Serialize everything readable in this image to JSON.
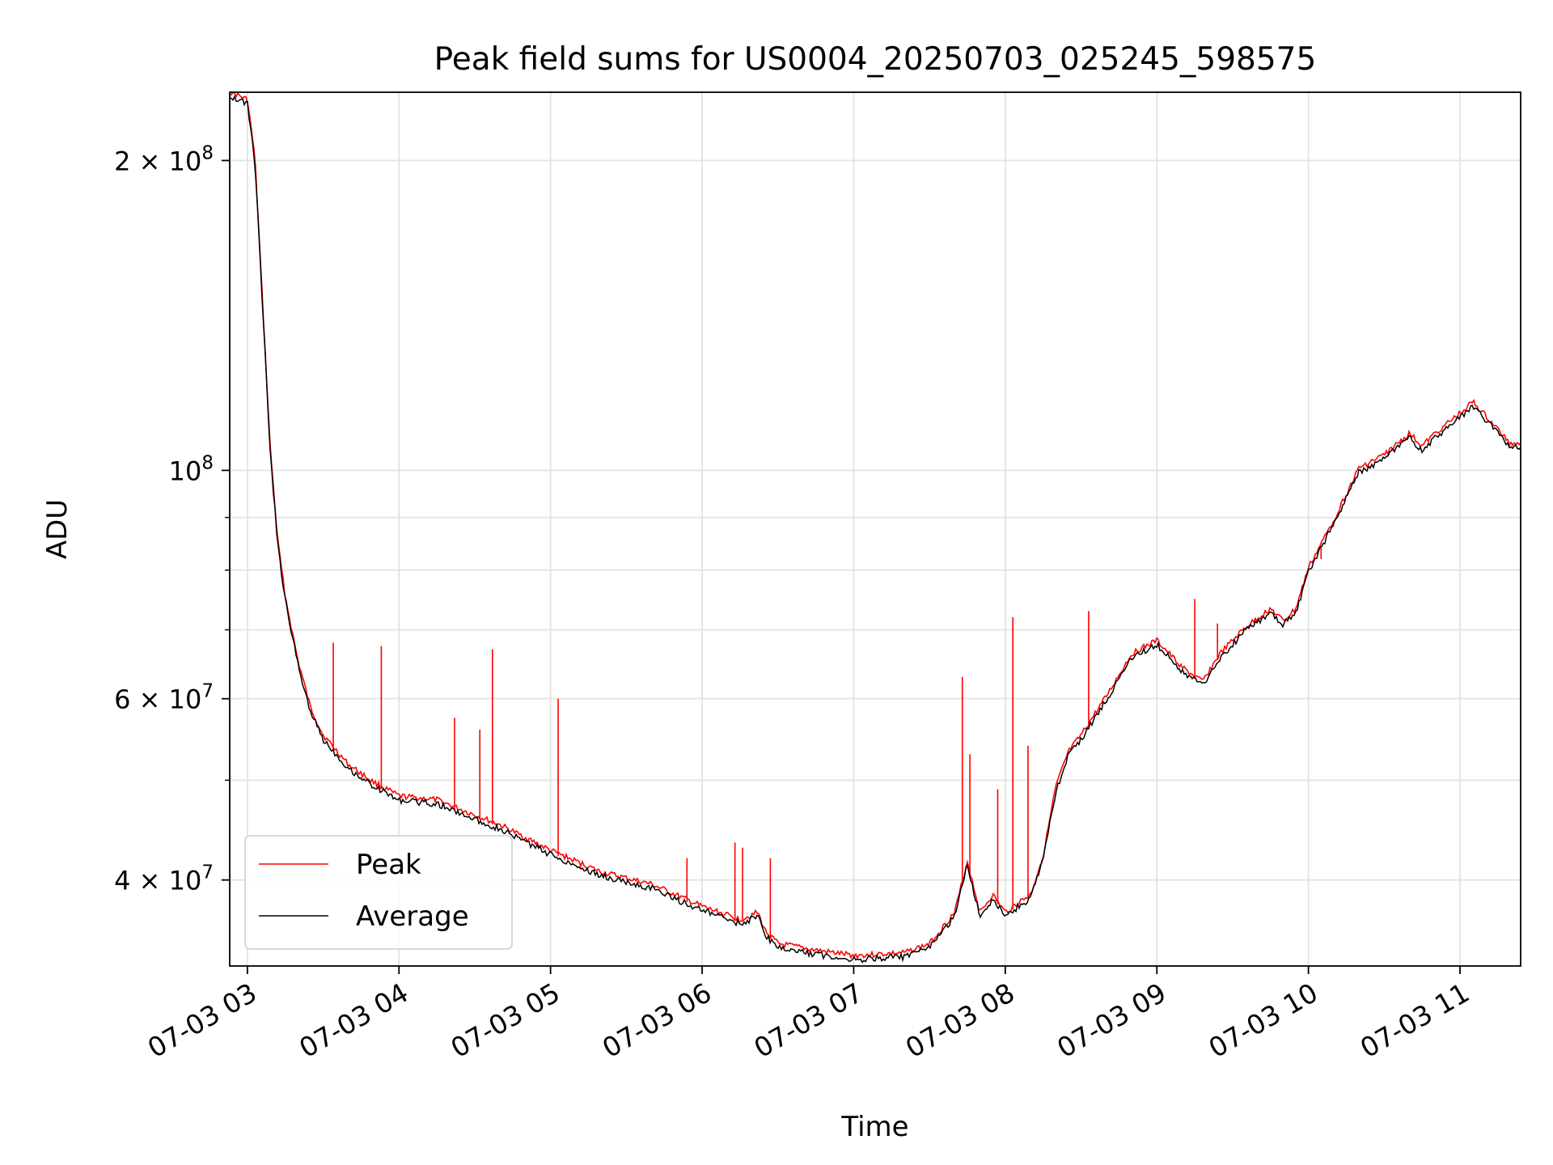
{
  "chart_data": {
    "type": "line",
    "title": "Peak field sums for US0004_20250703_025245_598575",
    "xlabel": "Time",
    "ylabel": "ADU",
    "yscale": "log",
    "xlim": [
      "07-03 02:53",
      "07-03 11:24"
    ],
    "ylim": [
      33000000,
      233000000
    ],
    "grid": true,
    "legend_position": "lower-left",
    "x_ticks": [
      {
        "value": "07-03 03:00",
        "label": "07-03 03"
      },
      {
        "value": "07-03 04:00",
        "label": "07-03 04"
      },
      {
        "value": "07-03 05:00",
        "label": "07-03 05"
      },
      {
        "value": "07-03 06:00",
        "label": "07-03 06"
      },
      {
        "value": "07-03 07:00",
        "label": "07-03 07"
      },
      {
        "value": "07-03 08:00",
        "label": "07-03 08"
      },
      {
        "value": "07-03 09:00",
        "label": "07-03 09"
      },
      {
        "value": "07-03 10:00",
        "label": "07-03 10"
      },
      {
        "value": "07-03 11:00",
        "label": "07-03 11"
      }
    ],
    "y_ticks": [
      {
        "value": 40000000,
        "mantissa": "4",
        "times": "×",
        "base": "10",
        "exp": "7"
      },
      {
        "value": 60000000,
        "mantissa": "6",
        "times": "×",
        "base": "10",
        "exp": "7"
      },
      {
        "value": 100000000,
        "mantissa": "",
        "times": "",
        "base": "10",
        "exp": "8"
      },
      {
        "value": 200000000,
        "mantissa": "2",
        "times": "×",
        "base": "10",
        "exp": "8"
      }
    ],
    "y_minor": [
      50000000,
      70000000,
      80000000,
      90000000
    ],
    "series": [
      {
        "name": "Average",
        "color": "#000000",
        "points": [
          [
            "07-03 02:53",
            232000000
          ],
          [
            "07-03 03:00",
            228000000
          ],
          [
            "07-03 03:03",
            200000000
          ],
          [
            "07-03 03:06",
            145000000
          ],
          [
            "07-03 03:09",
            105000000
          ],
          [
            "07-03 03:12",
            85000000
          ],
          [
            "07-03 03:15",
            75000000
          ],
          [
            "07-03 03:20",
            65000000
          ],
          [
            "07-03 03:25",
            58500000
          ],
          [
            "07-03 03:30",
            55000000
          ],
          [
            "07-03 03:40",
            51500000
          ],
          [
            "07-03 03:50",
            49500000
          ],
          [
            "07-03 04:00",
            48000000
          ],
          [
            "07-03 04:15",
            47600000
          ],
          [
            "07-03 04:30",
            46000000
          ],
          [
            "07-03 04:40",
            45000000
          ],
          [
            "07-03 05:00",
            42500000
          ],
          [
            "07-03 05:20",
            40500000
          ],
          [
            "07-03 05:40",
            39400000
          ],
          [
            "07-03 06:00",
            37500000
          ],
          [
            "07-03 06:15",
            36400000
          ],
          [
            "07-03 06:22",
            37000000
          ],
          [
            "07-03 06:25",
            35500000
          ],
          [
            "07-03 06:30",
            34500000
          ],
          [
            "07-03 06:45",
            34000000
          ],
          [
            "07-03 07:00",
            33600000
          ],
          [
            "07-03 07:20",
            33800000
          ],
          [
            "07-03 07:30",
            34500000
          ],
          [
            "07-03 07:40",
            37000000
          ],
          [
            "07-03 07:45",
            41500000
          ],
          [
            "07-03 07:50",
            37000000
          ],
          [
            "07-03 07:55",
            38500000
          ],
          [
            "07-03 08:00",
            37000000
          ],
          [
            "07-03 08:05",
            37800000
          ],
          [
            "07-03 08:10",
            38500000
          ],
          [
            "07-03 08:15",
            42000000
          ],
          [
            "07-03 08:20",
            49000000
          ],
          [
            "07-03 08:25",
            53000000
          ],
          [
            "07-03 08:30",
            55000000
          ],
          [
            "07-03 08:40",
            60000000
          ],
          [
            "07-03 08:50",
            66000000
          ],
          [
            "07-03 09:00",
            68000000
          ],
          [
            "07-03 09:10",
            64000000
          ],
          [
            "07-03 09:18",
            62000000
          ],
          [
            "07-03 09:25",
            66000000
          ],
          [
            "07-03 09:35",
            70000000
          ],
          [
            "07-03 09:45",
            73000000
          ],
          [
            "07-03 09:50",
            71000000
          ],
          [
            "07-03 09:55",
            73000000
          ],
          [
            "07-03 10:00",
            80000000
          ],
          [
            "07-03 10:10",
            89000000
          ],
          [
            "07-03 10:20",
            100000000
          ],
          [
            "07-03 10:30",
            103000000
          ],
          [
            "07-03 10:40",
            108000000
          ],
          [
            "07-03 10:45",
            105000000
          ],
          [
            "07-03 10:50",
            108000000
          ],
          [
            "07-03 11:00",
            113000000
          ],
          [
            "07-03 11:05",
            116000000
          ],
          [
            "07-03 11:15",
            109000000
          ],
          [
            "07-03 11:20",
            105500000
          ],
          [
            "07-03 11:24",
            106000000
          ]
        ]
      },
      {
        "name": "Peak",
        "color": "#ff0000",
        "spikes": [
          [
            "07-03 03:34",
            68000000
          ],
          [
            "07-03 03:53",
            67500000
          ],
          [
            "07-03 04:22",
            57500000
          ],
          [
            "07-03 04:32",
            56000000
          ],
          [
            "07-03 04:37",
            67000000
          ],
          [
            "07-03 05:03",
            60000000
          ],
          [
            "07-03 05:54",
            42000000
          ],
          [
            "07-03 06:13",
            43500000
          ],
          [
            "07-03 06:16",
            43000000
          ],
          [
            "07-03 06:27",
            42000000
          ],
          [
            "07-03 07:43",
            63000000
          ],
          [
            "07-03 07:46",
            53000000
          ],
          [
            "07-03 07:57",
            49000000
          ],
          [
            "07-03 08:03",
            72000000
          ],
          [
            "07-03 08:09",
            54000000
          ],
          [
            "07-03 08:33",
            73000000
          ],
          [
            "07-03 09:15",
            75000000
          ],
          [
            "07-03 09:24",
            71000000
          ],
          [
            "07-03 10:05",
            82000000
          ]
        ]
      }
    ]
  }
}
